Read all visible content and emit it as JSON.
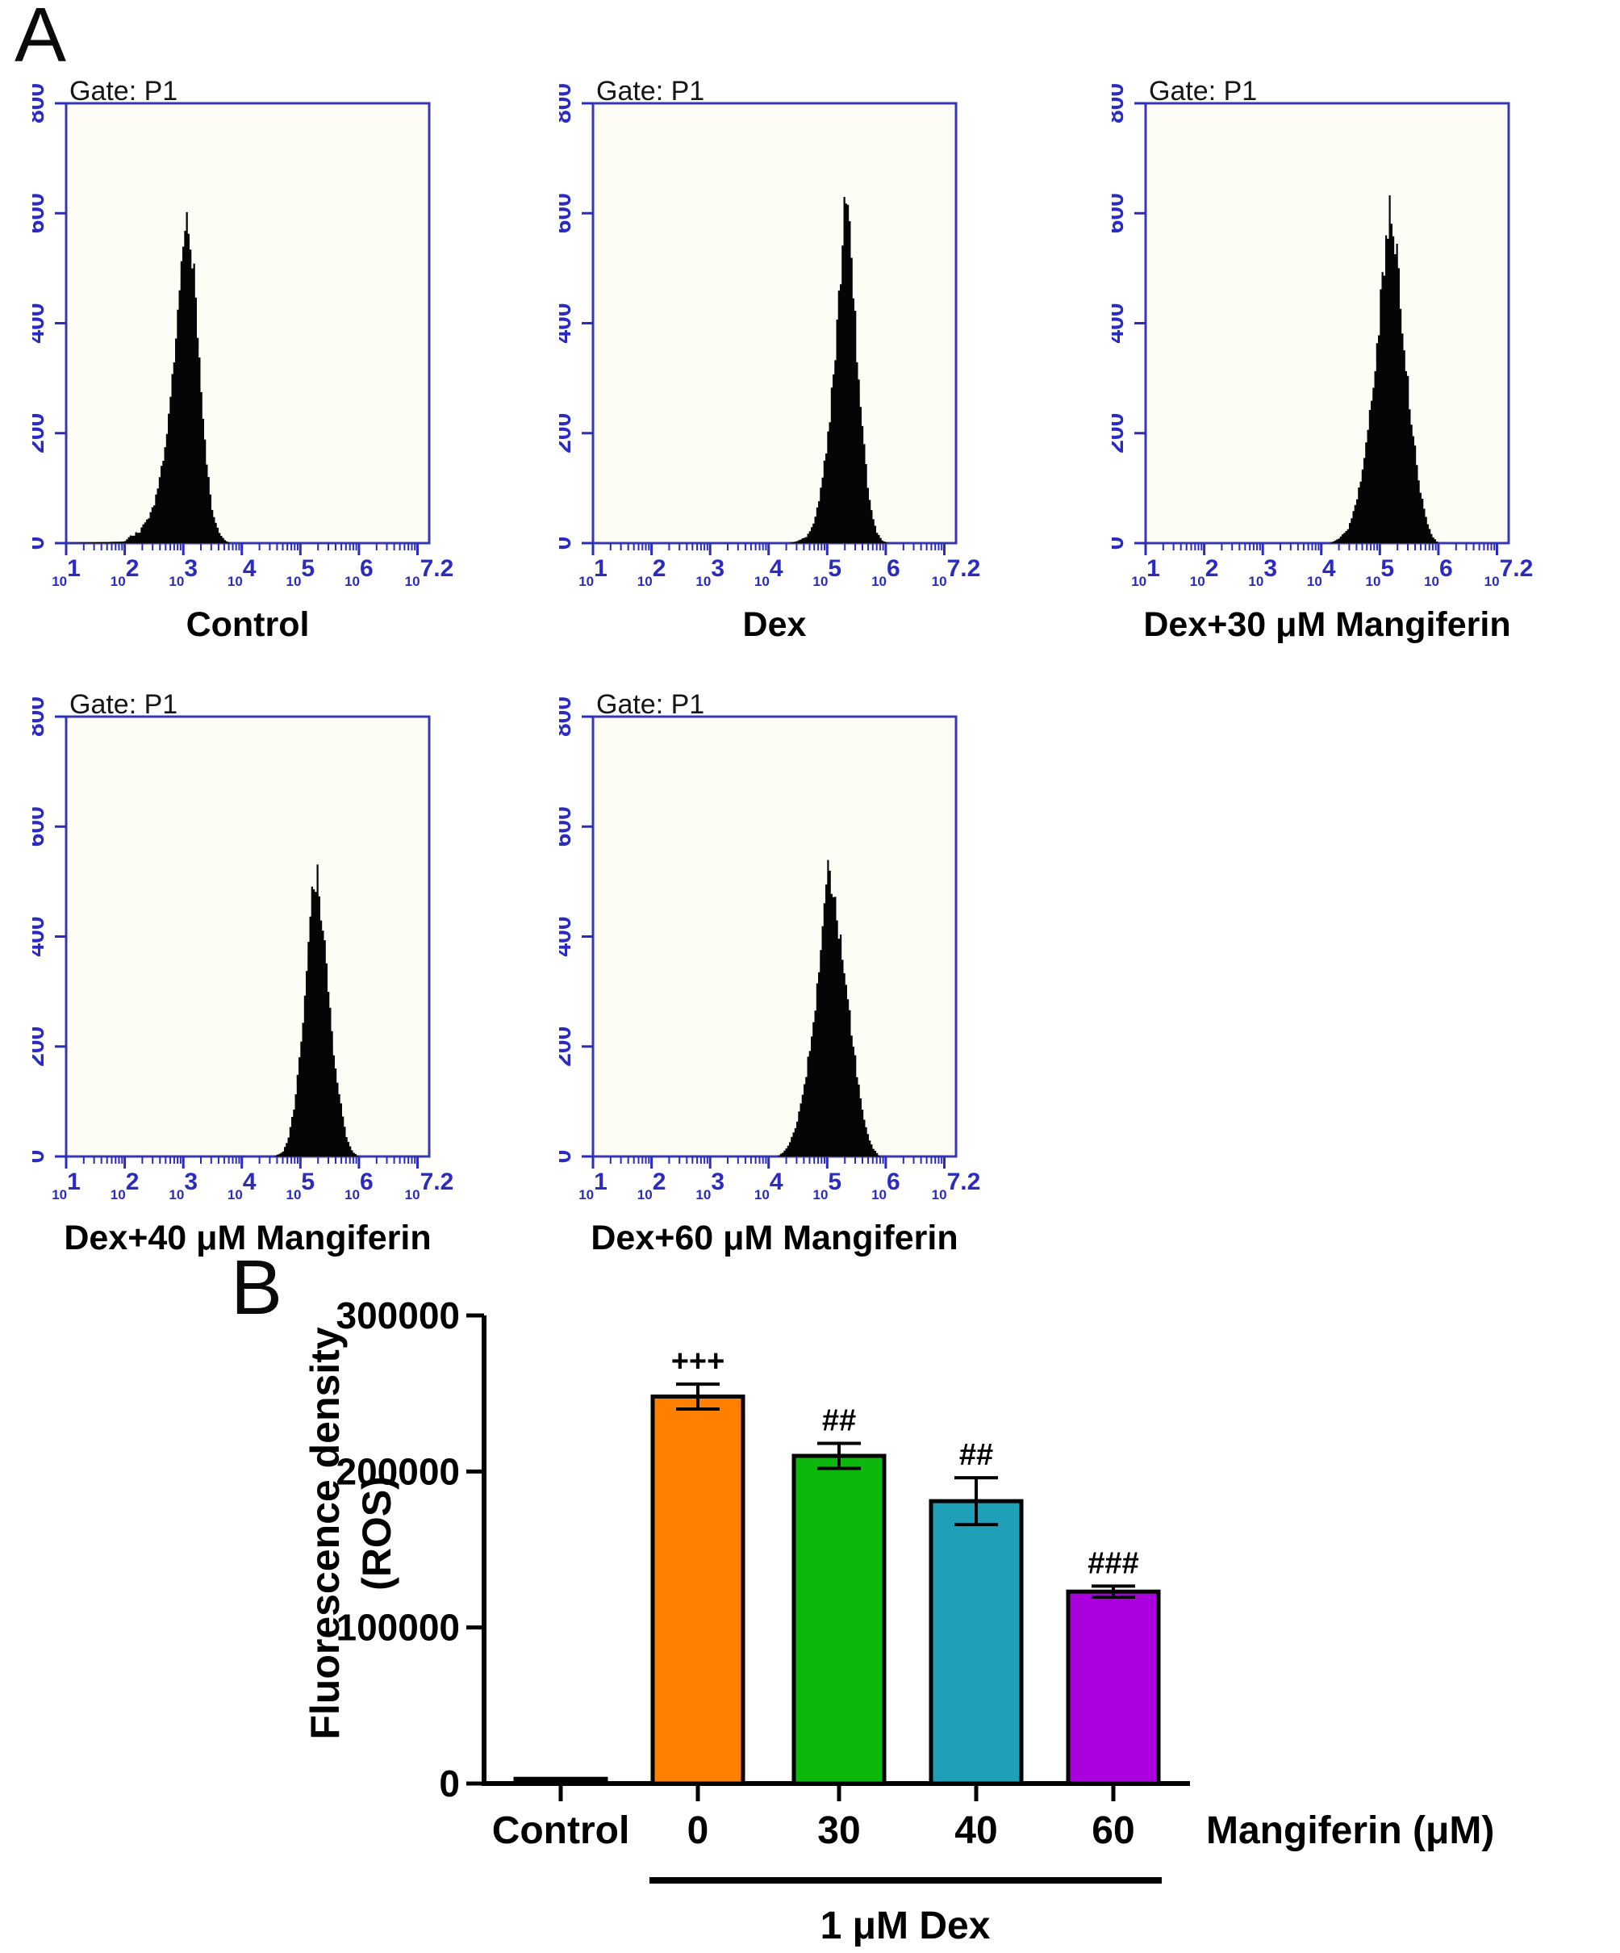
{
  "figure": {
    "panel_a_label": "A",
    "panel_b_label": "B",
    "colors": {
      "axis_blue": "#3737B4",
      "tick_blue": "#2B2BC0",
      "histogram_fill": "#050505",
      "plot_bg": "#FDFDF6",
      "bar_axis_black": "#000000"
    }
  },
  "chart_data": [
    {
      "type": "area",
      "kind": "flow-histogram",
      "gate": "Gate: P1",
      "title": "Control",
      "xscale": "log10",
      "xlim": [
        1,
        7.2
      ],
      "x_decade_ticks": [
        1,
        2,
        3,
        4,
        5,
        6,
        7
      ],
      "x_last_tick_label": "7.2",
      "ylim": [
        0,
        800
      ],
      "yticks": [
        0,
        200,
        400,
        600,
        800
      ],
      "points": [
        [
          1.0,
          0
        ],
        [
          2.0,
          3
        ],
        [
          2.05,
          8
        ],
        [
          2.1,
          15
        ],
        [
          2.15,
          12
        ],
        [
          2.2,
          22
        ],
        [
          2.25,
          18
        ],
        [
          2.3,
          32
        ],
        [
          2.4,
          45
        ],
        [
          2.5,
          70
        ],
        [
          2.6,
          115
        ],
        [
          2.7,
          180
        ],
        [
          2.8,
          280
        ],
        [
          2.9,
          430
        ],
        [
          3.0,
          575
        ],
        [
          3.05,
          620
        ],
        [
          3.1,
          595
        ],
        [
          3.2,
          470
        ],
        [
          3.3,
          290
        ],
        [
          3.4,
          140
        ],
        [
          3.5,
          60
        ],
        [
          3.6,
          22
        ],
        [
          3.7,
          6
        ],
        [
          3.8,
          0
        ],
        [
          7.2,
          0
        ]
      ]
    },
    {
      "type": "area",
      "kind": "flow-histogram",
      "gate": "Gate: P1",
      "title": "Dex",
      "xscale": "log10",
      "xlim": [
        1,
        7.2
      ],
      "x_decade_ticks": [
        1,
        2,
        3,
        4,
        5,
        6,
        7
      ],
      "x_last_tick_label": "7.2",
      "ylim": [
        0,
        800
      ],
      "yticks": [
        0,
        200,
        400,
        600,
        800
      ],
      "points": [
        [
          1,
          0
        ],
        [
          4.35,
          0
        ],
        [
          4.5,
          4
        ],
        [
          4.65,
          12
        ],
        [
          4.75,
          30
        ],
        [
          4.85,
          70
        ],
        [
          4.95,
          140
        ],
        [
          5.05,
          230
        ],
        [
          5.15,
          370
        ],
        [
          5.25,
          520
        ],
        [
          5.32,
          645
        ],
        [
          5.38,
          600
        ],
        [
          5.45,
          470
        ],
        [
          5.52,
          330
        ],
        [
          5.6,
          210
        ],
        [
          5.68,
          120
        ],
        [
          5.75,
          60
        ],
        [
          5.85,
          20
        ],
        [
          5.95,
          4
        ],
        [
          6.05,
          0
        ],
        [
          7.2,
          0
        ]
      ]
    },
    {
      "type": "area",
      "kind": "flow-histogram",
      "gate": "Gate: P1",
      "title": "Dex+30 μM Mangiferin",
      "xscale": "log10",
      "xlim": [
        1,
        7.2
      ],
      "x_decade_ticks": [
        1,
        2,
        3,
        4,
        5,
        6,
        7
      ],
      "x_last_tick_label": "7.2",
      "ylim": [
        0,
        800
      ],
      "yticks": [
        0,
        200,
        400,
        600,
        800
      ],
      "points": [
        [
          1,
          0
        ],
        [
          4.15,
          0
        ],
        [
          4.3,
          8
        ],
        [
          4.45,
          25
        ],
        [
          4.55,
          55
        ],
        [
          4.65,
          100
        ],
        [
          4.75,
          165
        ],
        [
          4.85,
          250
        ],
        [
          4.95,
          360
        ],
        [
          5.05,
          480
        ],
        [
          5.12,
          560
        ],
        [
          5.18,
          640
        ],
        [
          5.22,
          585
        ],
        [
          5.3,
          515
        ],
        [
          5.38,
          415
        ],
        [
          5.45,
          320
        ],
        [
          5.52,
          245
        ],
        [
          5.6,
          170
        ],
        [
          5.7,
          95
        ],
        [
          5.8,
          40
        ],
        [
          5.9,
          12
        ],
        [
          6.0,
          0
        ],
        [
          7.2,
          0
        ]
      ]
    },
    {
      "type": "area",
      "kind": "flow-histogram",
      "gate": "Gate: P1",
      "title": "Dex+40 μM Mangiferin",
      "xscale": "log10",
      "xlim": [
        1,
        7.2
      ],
      "x_decade_ticks": [
        1,
        2,
        3,
        4,
        5,
        6,
        7
      ],
      "x_last_tick_label": "7.2",
      "ylim": [
        0,
        800
      ],
      "yticks": [
        0,
        200,
        400,
        600,
        800
      ],
      "points": [
        [
          1,
          0
        ],
        [
          4.55,
          0
        ],
        [
          4.7,
          8
        ],
        [
          4.8,
          35
        ],
        [
          4.9,
          95
        ],
        [
          5.0,
          190
        ],
        [
          5.1,
          330
        ],
        [
          5.17,
          455
        ],
        [
          5.22,
          510
        ],
        [
          5.26,
          470
        ],
        [
          5.3,
          540
        ],
        [
          5.35,
          465
        ],
        [
          5.42,
          370
        ],
        [
          5.5,
          265
        ],
        [
          5.58,
          185
        ],
        [
          5.65,
          125
        ],
        [
          5.72,
          75
        ],
        [
          5.8,
          30
        ],
        [
          5.9,
          8
        ],
        [
          6.0,
          0
        ],
        [
          7.2,
          0
        ]
      ]
    },
    {
      "type": "area",
      "kind": "flow-histogram",
      "gate": "Gate: P1",
      "title": "Dex+60 μM Mangiferin",
      "xscale": "log10",
      "xlim": [
        1,
        7.2
      ],
      "x_decade_ticks": [
        1,
        2,
        3,
        4,
        5,
        6,
        7
      ],
      "x_last_tick_label": "7.2",
      "ylim": [
        0,
        800
      ],
      "yticks": [
        0,
        200,
        400,
        600,
        800
      ],
      "points": [
        [
          1,
          0
        ],
        [
          4.15,
          0
        ],
        [
          4.25,
          8
        ],
        [
          4.35,
          22
        ],
        [
          4.45,
          50
        ],
        [
          4.55,
          95
        ],
        [
          4.65,
          155
        ],
        [
          4.75,
          235
        ],
        [
          4.85,
          330
        ],
        [
          4.95,
          440
        ],
        [
          5.03,
          530
        ],
        [
          5.1,
          495
        ],
        [
          5.18,
          440
        ],
        [
          5.28,
          360
        ],
        [
          5.38,
          265
        ],
        [
          5.48,
          175
        ],
        [
          5.58,
          100
        ],
        [
          5.68,
          45
        ],
        [
          5.78,
          15
        ],
        [
          5.9,
          0
        ],
        [
          7.2,
          0
        ]
      ]
    },
    {
      "type": "bar",
      "title": "",
      "ylabel": "Fluorescence density",
      "ylabel2": "(ROS)",
      "categories": [
        "Control",
        "0",
        "30",
        "40",
        "60"
      ],
      "values": [
        3000,
        248000,
        210000,
        181000,
        123000
      ],
      "errors": [
        0,
        8000,
        8000,
        15000,
        3500
      ],
      "colors": [
        "#000000",
        "#FF8000",
        "#0CB80C",
        "#1F9FB8",
        "#AA00DD"
      ],
      "annotations": [
        "",
        "+++",
        "##",
        "##",
        "###"
      ],
      "yticks": [
        0,
        100000,
        200000,
        300000
      ],
      "ylim": [
        0,
        300000
      ],
      "axis_label_right": "Mangiferin (μM)",
      "group_label": "1 μM Dex",
      "group_span": [
        "0",
        "60"
      ],
      "legend": "none",
      "grid": false
    }
  ]
}
